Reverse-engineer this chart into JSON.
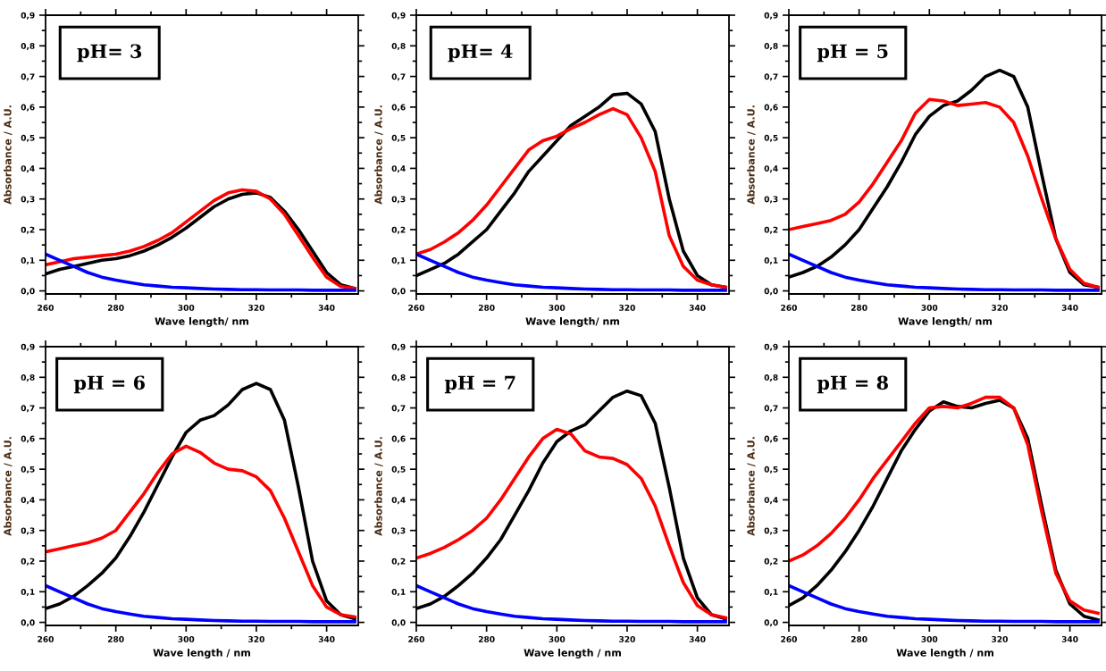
{
  "chart_data": [
    {
      "type": "line",
      "annotations": [
        "pH= 3"
      ],
      "xlabel": "Wave length/ nm",
      "ylabel": "Absorbance / A.U.",
      "xlim": [
        260,
        349
      ],
      "ylim": [
        -0.01,
        0.9
      ],
      "xticks": [
        260,
        280,
        300,
        320,
        340
      ],
      "yticks": [
        {
          "value": 0,
          "label": "0,0"
        },
        {
          "value": 0.1,
          "label": "0,1"
        },
        {
          "value": 0.2,
          "label": "0,2"
        },
        {
          "value": 0.3,
          "label": "0,3"
        },
        {
          "value": 0.4,
          "label": "0,4"
        },
        {
          "value": 0.5,
          "label": "0,5"
        },
        {
          "value": 0.6,
          "label": "0,6"
        },
        {
          "value": 0.7,
          "label": "0,7"
        },
        {
          "value": 0.8,
          "label": "0,8"
        },
        {
          "value": 0.9,
          "label": "0,9"
        }
      ],
      "grid": false,
      "marker": "none",
      "line_style": "solid",
      "x": [
        260,
        264,
        268,
        272,
        276,
        280,
        284,
        288,
        292,
        296,
        300,
        304,
        308,
        312,
        316,
        320,
        324,
        328,
        332,
        336,
        340,
        344,
        348
      ],
      "series": [
        {
          "color": "#000000",
          "values": [
            0.055,
            0.07,
            0.08,
            0.09,
            0.1,
            0.105,
            0.115,
            0.13,
            0.15,
            0.175,
            0.205,
            0.24,
            0.275,
            0.3,
            0.315,
            0.32,
            0.305,
            0.26,
            0.2,
            0.13,
            0.06,
            0.02,
            0.008
          ]
        },
        {
          "color": "#ff0000",
          "values": [
            0.085,
            0.095,
            0.105,
            0.11,
            0.115,
            0.12,
            0.13,
            0.145,
            0.165,
            0.19,
            0.225,
            0.26,
            0.295,
            0.32,
            0.33,
            0.325,
            0.3,
            0.25,
            0.18,
            0.11,
            0.045,
            0.015,
            0.008
          ]
        },
        {
          "color": "#0000ff",
          "values": [
            0.12,
            0.1,
            0.08,
            0.06,
            0.045,
            0.035,
            0.027,
            0.02,
            0.016,
            0.012,
            0.01,
            0.008,
            0.006,
            0.005,
            0.004,
            0.004,
            0.003,
            0.003,
            0.003,
            0.002,
            0.002,
            0.002,
            0.002
          ]
        }
      ]
    },
    {
      "type": "line",
      "annotations": [
        "pH= 4"
      ],
      "xlabel": "Wave length/ nm",
      "ylabel": "Absorbance / A.U.",
      "xlim": [
        260,
        349
      ],
      "ylim": [
        -0.01,
        0.9
      ],
      "xticks": [
        260,
        280,
        300,
        320,
        340
      ],
      "yticks": [
        {
          "value": 0,
          "label": "0,0"
        },
        {
          "value": 0.1,
          "label": "0,1"
        },
        {
          "value": 0.2,
          "label": "0,2"
        },
        {
          "value": 0.3,
          "label": "0,3"
        },
        {
          "value": 0.4,
          "label": "0,4"
        },
        {
          "value": 0.5,
          "label": "0,5"
        },
        {
          "value": 0.6,
          "label": "0,6"
        },
        {
          "value": 0.7,
          "label": "0,7"
        },
        {
          "value": 0.8,
          "label": "0,8"
        },
        {
          "value": 0.9,
          "label": "0,9"
        }
      ],
      "grid": false,
      "marker": "none",
      "line_style": "solid",
      "x": [
        260,
        264,
        268,
        272,
        276,
        280,
        284,
        288,
        292,
        296,
        300,
        304,
        308,
        312,
        316,
        320,
        324,
        328,
        332,
        336,
        340,
        344,
        348
      ],
      "series": [
        {
          "color": "#000000",
          "values": [
            0.05,
            0.07,
            0.09,
            0.12,
            0.16,
            0.2,
            0.26,
            0.32,
            0.39,
            0.44,
            0.49,
            0.54,
            0.57,
            0.6,
            0.64,
            0.645,
            0.61,
            0.52,
            0.3,
            0.13,
            0.05,
            0.02,
            0.012
          ]
        },
        {
          "color": "#ff0000",
          "values": [
            0.12,
            0.135,
            0.16,
            0.19,
            0.23,
            0.28,
            0.34,
            0.4,
            0.46,
            0.49,
            0.505,
            0.53,
            0.55,
            0.575,
            0.595,
            0.575,
            0.5,
            0.39,
            0.18,
            0.08,
            0.035,
            0.02,
            0.012
          ]
        },
        {
          "color": "#0000ff",
          "values": [
            0.12,
            0.1,
            0.08,
            0.06,
            0.045,
            0.035,
            0.027,
            0.02,
            0.016,
            0.012,
            0.01,
            0.008,
            0.006,
            0.005,
            0.004,
            0.004,
            0.003,
            0.003,
            0.003,
            0.002,
            0.002,
            0.002,
            0.002
          ]
        }
      ]
    },
    {
      "type": "line",
      "annotations": [
        "pH = 5"
      ],
      "xlabel": "Wave length/ nm",
      "ylabel": "Absorbance / A.U.",
      "xlim": [
        260,
        349
      ],
      "ylim": [
        -0.01,
        0.9
      ],
      "xticks": [
        260,
        280,
        300,
        320,
        340
      ],
      "yticks": [
        {
          "value": 0,
          "label": "0,0"
        },
        {
          "value": 0.1,
          "label": "0,1"
        },
        {
          "value": 0.2,
          "label": "0,2"
        },
        {
          "value": 0.3,
          "label": "0,3"
        },
        {
          "value": 0.4,
          "label": "0,4"
        },
        {
          "value": 0.5,
          "label": "0,5"
        },
        {
          "value": 0.6,
          "label": "0,6"
        },
        {
          "value": 0.7,
          "label": "0,7"
        },
        {
          "value": 0.8,
          "label": "0,8"
        },
        {
          "value": 0.9,
          "label": "0,9"
        }
      ],
      "grid": false,
      "marker": "none",
      "line_style": "solid",
      "x": [
        260,
        264,
        268,
        272,
        276,
        280,
        284,
        288,
        292,
        296,
        300,
        304,
        308,
        312,
        316,
        320,
        324,
        328,
        332,
        336,
        340,
        344,
        348
      ],
      "series": [
        {
          "color": "#000000",
          "values": [
            0.045,
            0.06,
            0.08,
            0.11,
            0.15,
            0.2,
            0.27,
            0.34,
            0.42,
            0.51,
            0.57,
            0.605,
            0.62,
            0.655,
            0.7,
            0.72,
            0.7,
            0.6,
            0.38,
            0.17,
            0.06,
            0.02,
            0.012
          ]
        },
        {
          "color": "#ff0000",
          "values": [
            0.2,
            0.21,
            0.22,
            0.23,
            0.25,
            0.29,
            0.35,
            0.42,
            0.49,
            0.58,
            0.625,
            0.62,
            0.605,
            0.61,
            0.615,
            0.6,
            0.55,
            0.44,
            0.3,
            0.17,
            0.07,
            0.025,
            0.012
          ]
        },
        {
          "color": "#0000ff",
          "values": [
            0.12,
            0.1,
            0.08,
            0.06,
            0.045,
            0.035,
            0.027,
            0.02,
            0.016,
            0.012,
            0.01,
            0.008,
            0.006,
            0.005,
            0.004,
            0.004,
            0.003,
            0.003,
            0.003,
            0.002,
            0.002,
            0.002,
            0.002
          ]
        }
      ]
    },
    {
      "type": "line",
      "annotations": [
        "pH = 6"
      ],
      "xlabel": "Wave length / nm",
      "ylabel": "Absorbance / A.U.",
      "xlim": [
        260,
        349
      ],
      "ylim": [
        -0.01,
        0.9
      ],
      "xticks": [
        260,
        280,
        300,
        320,
        340
      ],
      "yticks": [
        {
          "value": 0,
          "label": "0,0"
        },
        {
          "value": 0.1,
          "label": "0,1"
        },
        {
          "value": 0.2,
          "label": "0,2"
        },
        {
          "value": 0.3,
          "label": "0,3"
        },
        {
          "value": 0.4,
          "label": "0,4"
        },
        {
          "value": 0.5,
          "label": "0,5"
        },
        {
          "value": 0.6,
          "label": "0,6"
        },
        {
          "value": 0.7,
          "label": "0,7"
        },
        {
          "value": 0.8,
          "label": "0,8"
        },
        {
          "value": 0.9,
          "label": "0,9"
        }
      ],
      "grid": false,
      "marker": "none",
      "line_style": "solid",
      "x": [
        260,
        264,
        268,
        272,
        276,
        280,
        284,
        288,
        292,
        296,
        300,
        304,
        308,
        312,
        316,
        320,
        324,
        328,
        332,
        336,
        340,
        344,
        348
      ],
      "series": [
        {
          "color": "#000000",
          "values": [
            0.045,
            0.06,
            0.085,
            0.12,
            0.16,
            0.21,
            0.28,
            0.36,
            0.45,
            0.54,
            0.62,
            0.66,
            0.675,
            0.71,
            0.76,
            0.78,
            0.76,
            0.66,
            0.44,
            0.2,
            0.07,
            0.025,
            0.012
          ]
        },
        {
          "color": "#ff0000",
          "values": [
            0.23,
            0.24,
            0.25,
            0.26,
            0.275,
            0.3,
            0.36,
            0.42,
            0.49,
            0.55,
            0.575,
            0.555,
            0.52,
            0.5,
            0.495,
            0.475,
            0.43,
            0.34,
            0.23,
            0.12,
            0.05,
            0.025,
            0.018
          ]
        },
        {
          "color": "#0000ff",
          "values": [
            0.12,
            0.1,
            0.08,
            0.06,
            0.045,
            0.035,
            0.027,
            0.02,
            0.016,
            0.012,
            0.01,
            0.008,
            0.006,
            0.005,
            0.004,
            0.004,
            0.003,
            0.003,
            0.003,
            0.002,
            0.002,
            0.002,
            0.002
          ]
        }
      ]
    },
    {
      "type": "line",
      "annotations": [
        "pH = 7"
      ],
      "xlabel": "Wave length / nm",
      "ylabel": "Absorbance / A.U.",
      "xlim": [
        260,
        349
      ],
      "ylim": [
        -0.01,
        0.9
      ],
      "xticks": [
        260,
        280,
        300,
        320,
        340
      ],
      "yticks": [
        {
          "value": 0,
          "label": "0,0"
        },
        {
          "value": 0.1,
          "label": "0,1"
        },
        {
          "value": 0.2,
          "label": "0,2"
        },
        {
          "value": 0.3,
          "label": "0,3"
        },
        {
          "value": 0.4,
          "label": "0,4"
        },
        {
          "value": 0.5,
          "label": "0,5"
        },
        {
          "value": 0.6,
          "label": "0,6"
        },
        {
          "value": 0.7,
          "label": "0,7"
        },
        {
          "value": 0.8,
          "label": "0,8"
        },
        {
          "value": 0.9,
          "label": "0,9"
        }
      ],
      "grid": false,
      "marker": "none",
      "line_style": "solid",
      "x": [
        260,
        264,
        268,
        272,
        276,
        280,
        284,
        288,
        292,
        296,
        300,
        304,
        308,
        312,
        316,
        320,
        324,
        328,
        332,
        336,
        340,
        344,
        348
      ],
      "series": [
        {
          "color": "#000000",
          "values": [
            0.045,
            0.06,
            0.085,
            0.12,
            0.16,
            0.21,
            0.27,
            0.35,
            0.43,
            0.52,
            0.59,
            0.625,
            0.645,
            0.69,
            0.735,
            0.755,
            0.74,
            0.65,
            0.44,
            0.21,
            0.08,
            0.025,
            0.012
          ]
        },
        {
          "color": "#ff0000",
          "values": [
            0.21,
            0.225,
            0.245,
            0.27,
            0.3,
            0.34,
            0.4,
            0.47,
            0.54,
            0.6,
            0.63,
            0.615,
            0.56,
            0.54,
            0.535,
            0.515,
            0.47,
            0.38,
            0.25,
            0.13,
            0.055,
            0.025,
            0.015
          ]
        },
        {
          "color": "#0000ff",
          "values": [
            0.12,
            0.1,
            0.08,
            0.06,
            0.045,
            0.035,
            0.027,
            0.02,
            0.016,
            0.012,
            0.01,
            0.008,
            0.006,
            0.005,
            0.004,
            0.004,
            0.003,
            0.003,
            0.003,
            0.002,
            0.002,
            0.002,
            0.002
          ]
        }
      ]
    },
    {
      "type": "line",
      "annotations": [
        "pH = 8"
      ],
      "xlabel": "Wave length / nm",
      "ylabel": "Absorbance / A.U.",
      "xlim": [
        260,
        349
      ],
      "ylim": [
        -0.01,
        0.9
      ],
      "xticks": [
        260,
        280,
        300,
        320,
        340
      ],
      "yticks": [
        {
          "value": 0,
          "label": "0,0"
        },
        {
          "value": 0.1,
          "label": "0,1"
        },
        {
          "value": 0.2,
          "label": "0,2"
        },
        {
          "value": 0.3,
          "label": "0,3"
        },
        {
          "value": 0.4,
          "label": "0,4"
        },
        {
          "value": 0.5,
          "label": "0,5"
        },
        {
          "value": 0.6,
          "label": "0,6"
        },
        {
          "value": 0.7,
          "label": "0,7"
        },
        {
          "value": 0.8,
          "label": "0,8"
        },
        {
          "value": 0.9,
          "label": "0,9"
        }
      ],
      "grid": false,
      "marker": "none",
      "line_style": "solid",
      "x": [
        260,
        264,
        268,
        272,
        276,
        280,
        284,
        288,
        292,
        296,
        300,
        304,
        308,
        312,
        316,
        320,
        324,
        328,
        332,
        336,
        340,
        344,
        348
      ],
      "series": [
        {
          "color": "#000000",
          "values": [
            0.055,
            0.08,
            0.12,
            0.17,
            0.23,
            0.3,
            0.38,
            0.47,
            0.56,
            0.63,
            0.69,
            0.72,
            0.705,
            0.7,
            0.715,
            0.725,
            0.7,
            0.6,
            0.38,
            0.17,
            0.06,
            0.02,
            0.008
          ]
        },
        {
          "color": "#ff0000",
          "values": [
            0.2,
            0.22,
            0.25,
            0.29,
            0.34,
            0.4,
            0.47,
            0.53,
            0.59,
            0.65,
            0.7,
            0.705,
            0.7,
            0.715,
            0.735,
            0.735,
            0.7,
            0.58,
            0.36,
            0.16,
            0.07,
            0.04,
            0.03
          ]
        },
        {
          "color": "#0000ff",
          "values": [
            0.12,
            0.1,
            0.08,
            0.06,
            0.045,
            0.035,
            0.027,
            0.02,
            0.016,
            0.012,
            0.01,
            0.008,
            0.006,
            0.005,
            0.004,
            0.004,
            0.003,
            0.003,
            0.003,
            0.002,
            0.002,
            0.002,
            0.002
          ]
        }
      ]
    }
  ]
}
